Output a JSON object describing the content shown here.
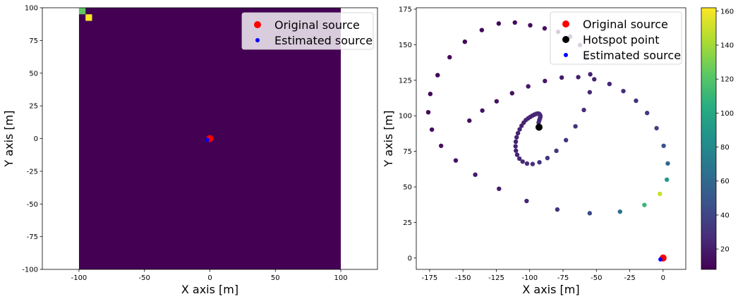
{
  "chart_data": [
    {
      "type": "heatmap",
      "xlabel": "X axis [m]",
      "ylabel": "Y axis [m]",
      "xlim": [
        -128,
        128
      ],
      "ylim": [
        -100,
        100
      ],
      "xticks": [
        -100,
        -50,
        0,
        50,
        100
      ],
      "yticks": [
        -100,
        -75,
        -50,
        -25,
        0,
        25,
        50,
        75,
        100
      ],
      "heatmap_extent": {
        "x": [
          -100,
          100
        ],
        "y": [
          -100,
          100
        ]
      },
      "background_color": "#440154",
      "cells": [
        {
          "x": [
            -100,
            -95
          ],
          "y": [
            95,
            100
          ],
          "color": "#5ec962"
        },
        {
          "x": [
            -95,
            -90
          ],
          "y": [
            90,
            95
          ],
          "color": "#fde725"
        }
      ],
      "legend_position": "top-right",
      "series": [
        {
          "name": "Original source",
          "x": [
            0
          ],
          "y": [
            0
          ],
          "color": "#ff0000",
          "marker_size": 10
        },
        {
          "name": "Estimated source",
          "x": [
            -2
          ],
          "y": [
            -1
          ],
          "color": "#0000ff",
          "marker_size": 6
        }
      ]
    },
    {
      "type": "scatter",
      "xlabel": "X axis [m]",
      "ylabel": "Y axis [m]",
      "xlim": [
        -185,
        17
      ],
      "ylim": [
        -8,
        176
      ],
      "xticks": [
        -175,
        -150,
        -125,
        -100,
        -75,
        -50,
        -25,
        0
      ],
      "yticks": [
        0,
        25,
        50,
        75,
        100,
        125,
        150,
        175
      ],
      "legend_position": "top-right",
      "colorbar": {
        "min": 8,
        "max": 162,
        "ticks": [
          20,
          40,
          60,
          80,
          100,
          120,
          140,
          160
        ],
        "colormap": "viridis"
      },
      "spiral_values": {
        "x": [
          -93.3,
          -92.8,
          -92.4,
          -92.1,
          -92.0,
          -92.0,
          -92.3,
          -92.7,
          -93.4,
          -94.3,
          -95.3,
          -96.6,
          -98.0,
          -99.6,
          -101.2,
          -102.9,
          -104.5,
          -106.1,
          -107.5,
          -108.8,
          -109.8,
          -110.4,
          -110.6,
          -110.3,
          -109.4,
          -107.7,
          -105.3,
          -102.0,
          -97.8,
          -92.7,
          -86.7,
          -80.0,
          -72.8,
          -65.7,
          -59.4,
          -55.0,
          -54.6,
          -57.2,
          -62.3,
          -69.7,
          -78.7,
          -88.8,
          -99.6,
          -111.1,
          -123.2,
          -135.9,
          -148.6,
          -160.0,
          -169.0,
          -174.5,
          -176.0,
          -173.3,
          -166.4,
          -155.4,
          -140.8,
          -123.0,
          -102.3,
          -79.3,
          -55.0,
          -32.3,
          -14.0,
          -2.4,
          2.8,
          3.5,
          0.4,
          -4.9,
          -12.0,
          -20.3,
          -29.8,
          -40.2,
          -51.6,
          -63.6,
          -76.0,
          -88.6,
          -101.1,
          -113.2,
          -124.8,
          -135.5,
          -145.2
        ],
        "y": [
          95.2,
          96.8,
          98.0,
          98.9,
          99.5,
          100.0,
          100.6,
          101.2,
          101.6,
          101.6,
          101.3,
          100.8,
          100.1,
          99.2,
          98.2,
          97.0,
          95.2,
          93.0,
          90.5,
          87.8,
          84.9,
          81.8,
          78.6,
          75.5,
          72.6,
          69.9,
          67.8,
          66.4,
          66.1,
          67.3,
          70.3,
          75.4,
          82.9,
          92.6,
          104.1,
          116.6,
          129.2,
          140.6,
          149.8,
          155.7,
          159.1,
          161.5,
          163.7,
          165.6,
          164.9,
          160.3,
          152.1,
          141.2,
          128.6,
          115.4,
          102.5,
          90.3,
          78.9,
          68.6,
          58.6,
          48.7,
          40.1,
          34.1,
          31.5,
          32.6,
          37.3,
          45.1,
          55.1,
          66.5,
          78.9,
          91.3,
          102.0,
          110.6,
          117.4,
          122.4,
          125.7,
          127.2,
          126.9,
          124.5,
          120.7,
          115.9,
          110.2,
          103.7,
          96.6
        ],
        "c": [
          25,
          25,
          25,
          25,
          25,
          25,
          25,
          25,
          25,
          25,
          25,
          25,
          24,
          24,
          24,
          24,
          23,
          23,
          23,
          22,
          22,
          22,
          22,
          23,
          23,
          24,
          25,
          27,
          29,
          31,
          32,
          32,
          31,
          29,
          27,
          25,
          22,
          20,
          18,
          16,
          15,
          14,
          13,
          12,
          11,
          11,
          10,
          10,
          10,
          11,
          12,
          13,
          14,
          16,
          18,
          20,
          24,
          30,
          42,
          66,
          110,
          150,
          90,
          60,
          45,
          38,
          33,
          30,
          27,
          25,
          23,
          21,
          19,
          18,
          17,
          16,
          15,
          15,
          14
        ]
      },
      "series": [
        {
          "name": "Original source",
          "x": [
            0
          ],
          "y": [
            0
          ],
          "color": "#ff0000",
          "marker_size": 10
        },
        {
          "name": "Hotspot point",
          "x": [
            -93
          ],
          "y": [
            92
          ],
          "color": "#000000",
          "marker_size": 10
        },
        {
          "name": "Estimated source",
          "x": [
            -2
          ],
          "y": [
            -1
          ],
          "color": "#0000ff",
          "marker_size": 6
        }
      ]
    }
  ]
}
